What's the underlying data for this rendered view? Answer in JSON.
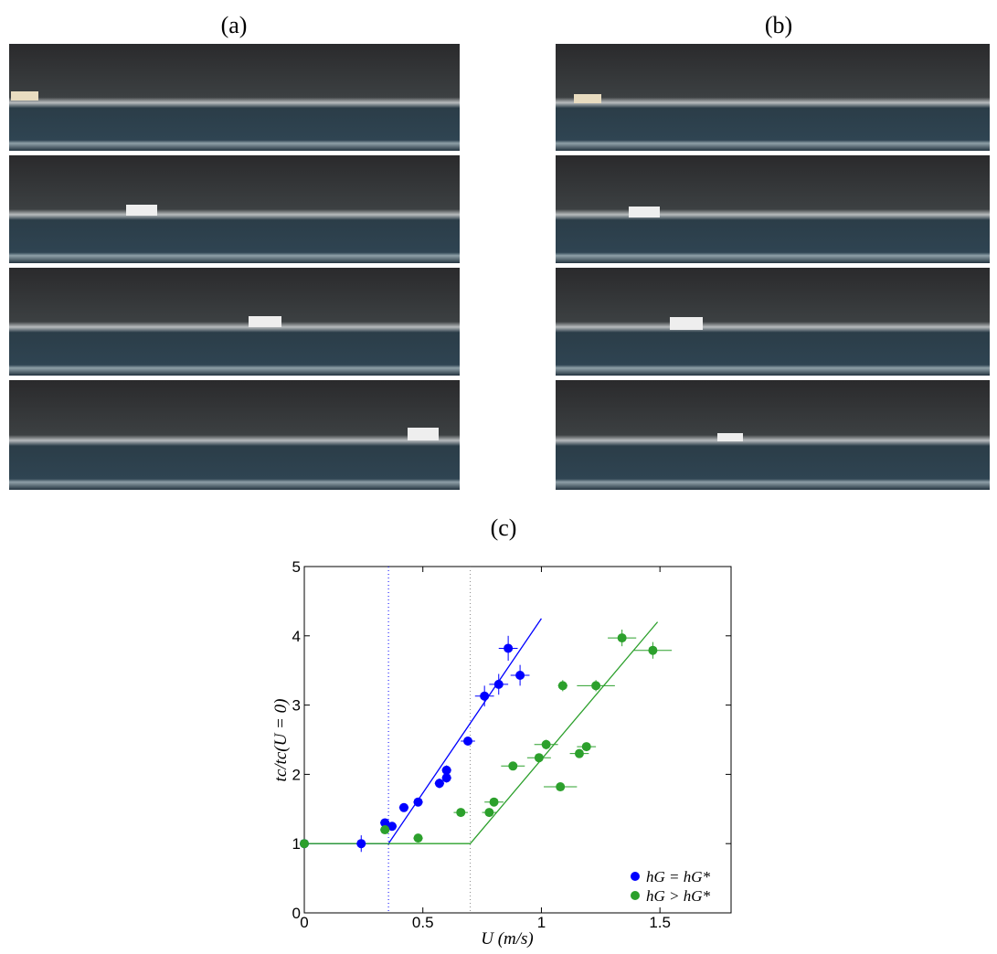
{
  "panel_labels": [
    "(a)",
    "(b)"
  ],
  "chart_data": {
    "type": "scatter",
    "title": "(c)",
    "x_label": "U (m/s)",
    "y_label": "tc/tc(U = 0)",
    "xlim": [
      0,
      1.8
    ],
    "ylim": [
      0,
      5
    ],
    "xticks": [
      0,
      0.5,
      1,
      1.5
    ],
    "yticks": [
      0,
      1,
      2,
      3,
      4,
      5
    ],
    "legend": "lower right",
    "series": [
      {
        "name": "hG = hG*",
        "color": "#0000ff",
        "x": [
          0,
          0.24,
          0.34,
          0.37,
          0.42,
          0.48,
          0.57,
          0.6,
          0.6,
          0.69,
          0.76,
          0.82,
          0.91,
          0.86
        ],
        "values": [
          1,
          1,
          1.3,
          1.25,
          1.52,
          1.6,
          1.87,
          2.06,
          1.95,
          2.48,
          3.13,
          3.3,
          3.43,
          3.82
        ],
        "xerr": [
          0,
          0.02,
          0.02,
          0.02,
          0.02,
          0.02,
          0.02,
          0.02,
          0.02,
          0.03,
          0.04,
          0.04,
          0.04,
          0.04
        ],
        "yerr": [
          0.05,
          0.12,
          0.05,
          0.05,
          0.05,
          0.05,
          0.07,
          0.07,
          0.07,
          0.06,
          0.15,
          0.15,
          0.15,
          0.18
        ]
      },
      {
        "name": "hG > hG*",
        "color": "#2ca02c",
        "x": [
          0,
          0.34,
          0.48,
          0.66,
          0.78,
          0.8,
          0.88,
          0.99,
          1.02,
          1.08,
          1.09,
          1.23,
          1.16,
          1.19,
          1.34,
          1.47
        ],
        "values": [
          1,
          1.2,
          1.08,
          1.45,
          1.45,
          1.6,
          2.12,
          2.24,
          2.43,
          1.82,
          3.28,
          3.28,
          2.3,
          2.4,
          3.97,
          3.79
        ],
        "xerr": [
          0,
          0.02,
          0.02,
          0.03,
          0.03,
          0.04,
          0.05,
          0.05,
          0.05,
          0.07,
          0.02,
          0.08,
          0.04,
          0.04,
          0.06,
          0.08
        ],
        "yerr": [
          0.03,
          0.03,
          0.04,
          0.04,
          0.05,
          0.05,
          0.05,
          0.05,
          0.07,
          0.04,
          0.08,
          0.08,
          0.06,
          0.06,
          0.12,
          0.12
        ]
      }
    ],
    "fits": [
      {
        "color": "#0000ff",
        "x": [
          0,
          0.355,
          1.0
        ],
        "y": [
          1,
          1,
          4.25
        ]
      },
      {
        "color": "#2ca02c",
        "x": [
          0,
          0.7,
          1.49
        ],
        "y": [
          1,
          1,
          4.2
        ]
      }
    ],
    "vlines": [
      {
        "x": 0.355,
        "color": "#0000ff"
      },
      {
        "x": 0.7,
        "color": "#888888"
      }
    ]
  }
}
